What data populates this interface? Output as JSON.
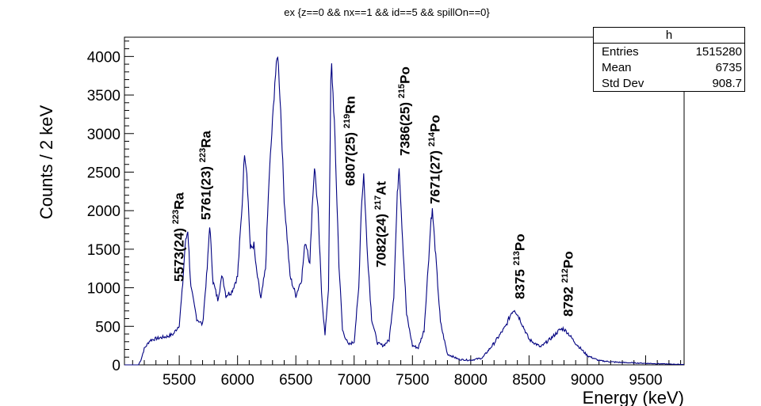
{
  "chart_data": {
    "type": "line",
    "title": "ex {z==0 && nx==1 && id==5 && spillOn==0}",
    "xlabel": "Energy (keV)",
    "ylabel": "Counts / 2 keV",
    "xlim": [
      5030,
      9830
    ],
    "ylim": [
      0,
      4250
    ],
    "xticks": [
      5500,
      6000,
      6500,
      7000,
      7500,
      8000,
      8500,
      9000,
      9500
    ],
    "yticks": [
      0,
      500,
      1000,
      1500,
      2000,
      2500,
      3000,
      3500,
      4000
    ],
    "line_color": "#000080",
    "grid": false,
    "series": [
      {
        "x": [
          5030,
          5150,
          5170,
          5200,
          5250,
          5300,
          5400,
          5450,
          5500,
          5530,
          5550,
          5573,
          5600,
          5650,
          5700,
          5740,
          5761,
          5790,
          5830,
          5870,
          5900,
          5950,
          6000,
          6040,
          6060,
          6080,
          6110,
          6140,
          6160,
          6200,
          6240,
          6270,
          6300,
          6320,
          6345,
          6370,
          6400,
          6450,
          6500,
          6550,
          6580,
          6600,
          6620,
          6640,
          6660,
          6690,
          6720,
          6750,
          6780,
          6800,
          6807,
          6830,
          6870,
          6900,
          6950,
          7000,
          7040,
          7060,
          7082,
          7110,
          7150,
          7200,
          7250,
          7300,
          7340,
          7370,
          7386,
          7410,
          7450,
          7500,
          7550,
          7600,
          7640,
          7660,
          7671,
          7700,
          7740,
          7800,
          7900,
          8000,
          8100,
          8200,
          8300,
          8350,
          8375,
          8420,
          8500,
          8600,
          8700,
          8760,
          8792,
          8830,
          8900,
          9000,
          9100,
          9200,
          9300,
          9500,
          9700,
          9830
        ],
        "y": [
          0,
          0,
          60,
          210,
          320,
          340,
          370,
          400,
          520,
          1050,
          1550,
          1750,
          1000,
          600,
          520,
          1250,
          1820,
          1080,
          850,
          1170,
          900,
          950,
          1150,
          2100,
          2770,
          2500,
          1500,
          1560,
          1250,
          850,
          1250,
          2400,
          3150,
          3680,
          4040,
          3300,
          2150,
          1150,
          900,
          1120,
          1600,
          1500,
          1300,
          2050,
          2580,
          2000,
          950,
          380,
          1000,
          3650,
          3880,
          3150,
          1300,
          450,
          260,
          300,
          1000,
          2000,
          2480,
          1550,
          600,
          280,
          250,
          320,
          900,
          2200,
          2600,
          1800,
          650,
          250,
          220,
          450,
          1400,
          1900,
          2000,
          1400,
          550,
          140,
          70,
          60,
          90,
          280,
          500,
          680,
          720,
          600,
          330,
          230,
          360,
          450,
          470,
          420,
          280,
          120,
          55,
          40,
          30,
          20,
          10,
          5
        ]
      }
    ],
    "annotations": [
      {
        "energy": "5573(24)",
        "mass": "223",
        "element": "Ra"
      },
      {
        "energy": "5761(23)",
        "mass": "223",
        "element": "Ra"
      },
      {
        "energy": "6807(25)",
        "mass": "219",
        "element": "Rn"
      },
      {
        "energy": "7082(24)",
        "mass": "217",
        "element": "At"
      },
      {
        "energy": "7386(25)",
        "mass": "215",
        "element": "Po"
      },
      {
        "energy": "7671(27)",
        "mass": "214",
        "element": "Po"
      },
      {
        "energy": "8375",
        "mass": "213",
        "element": "Po"
      },
      {
        "energy": "8792",
        "mass": "212",
        "element": "Po"
      }
    ]
  },
  "stats_box": {
    "name": "h",
    "rows": [
      {
        "label": "Entries",
        "value": "1515280"
      },
      {
        "label": "Mean",
        "value": "6735"
      },
      {
        "label": "Std Dev",
        "value": "908.7"
      }
    ]
  }
}
